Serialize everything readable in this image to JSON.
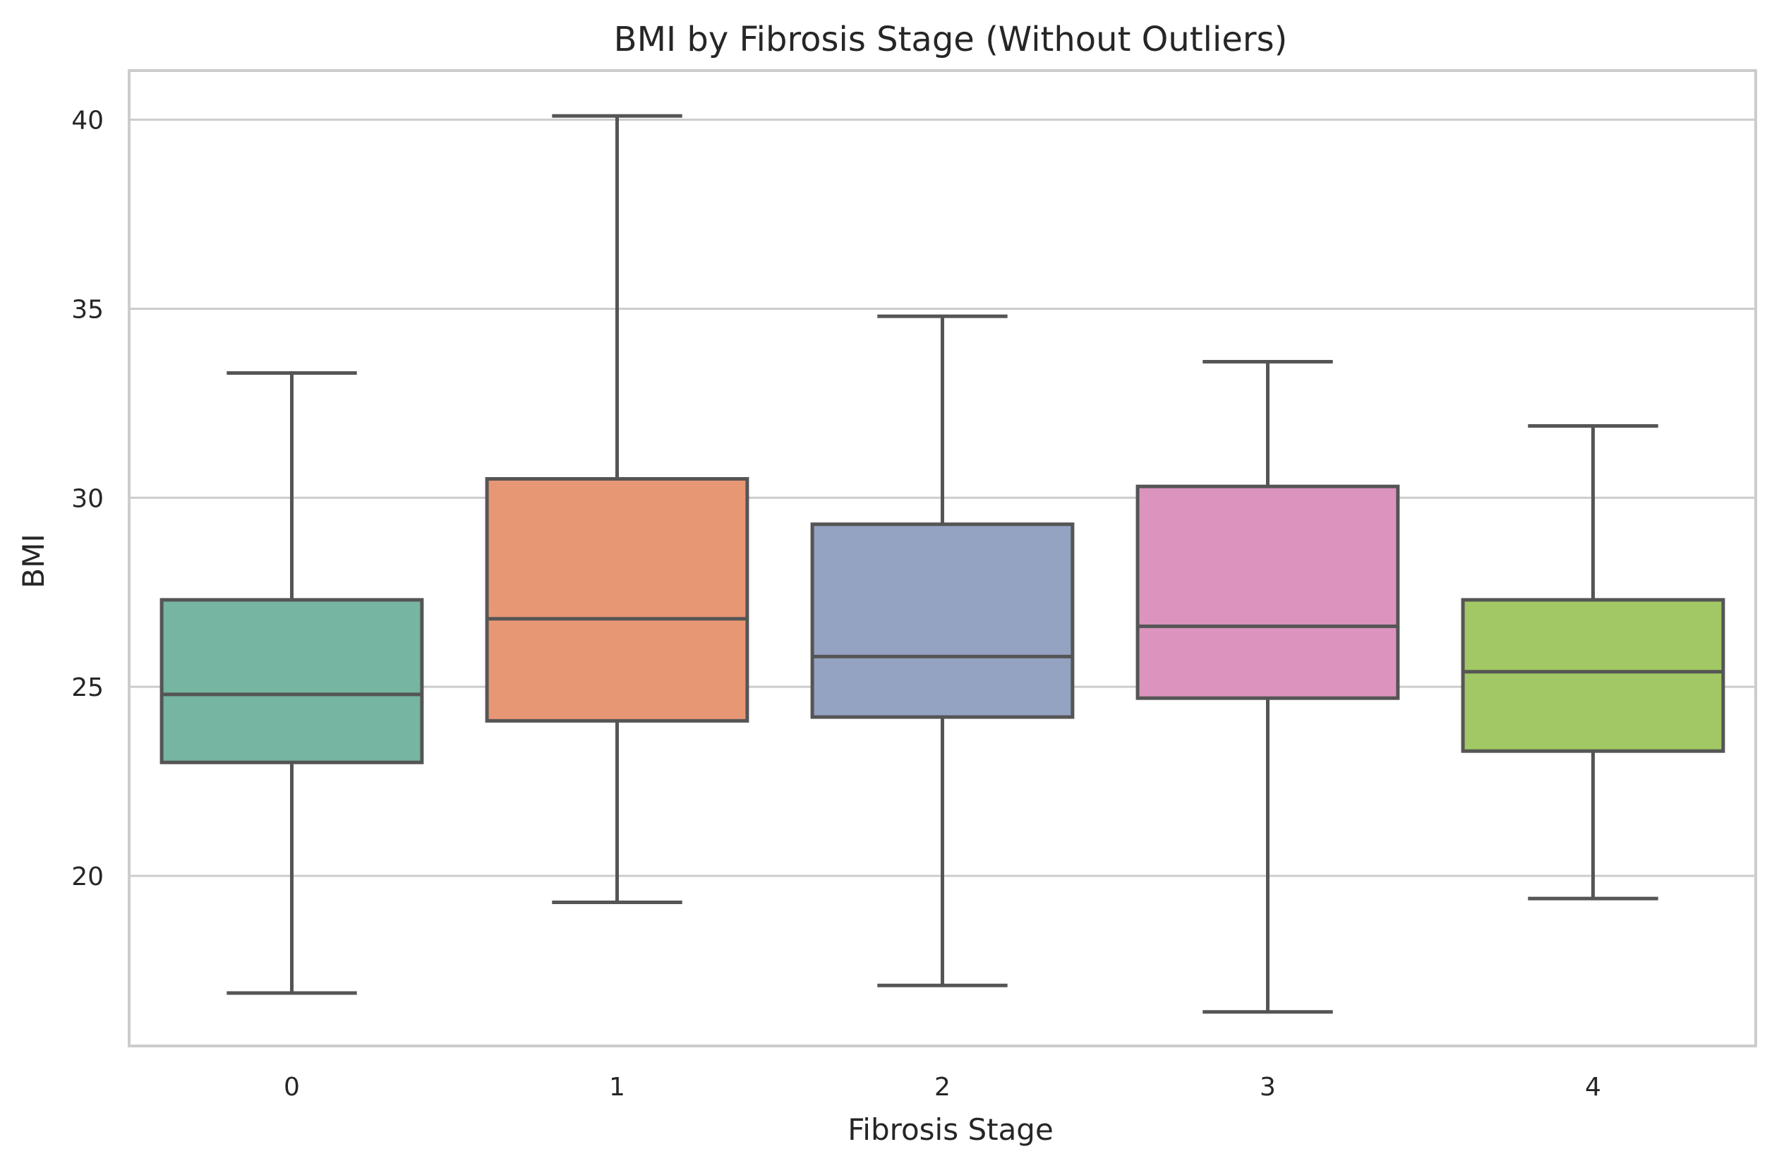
{
  "colors": {
    "background": "#ffffff",
    "grid": "#cccccc",
    "frame": "#cccccc",
    "box_edge": "#555555",
    "text": "#262626"
  },
  "chart_data": {
    "type": "box",
    "title": "BMI by Fibrosis Stage (Without Outliers)",
    "xlabel": "Fibrosis Stage",
    "ylabel": "BMI",
    "categories": [
      "0",
      "1",
      "2",
      "3",
      "4"
    ],
    "ylim": [
      15.5,
      41.3
    ],
    "yticks": [
      20,
      25,
      30,
      35,
      40
    ],
    "grid": true,
    "legend": "none",
    "boxes": [
      {
        "category": "0",
        "whisker_low": 16.9,
        "q1": 23.0,
        "median": 24.8,
        "q3": 27.3,
        "whisker_high": 33.3,
        "color": "#75b5a1"
      },
      {
        "category": "1",
        "whisker_low": 19.3,
        "q1": 24.1,
        "median": 26.8,
        "q3": 30.5,
        "whisker_high": 40.1,
        "color": "#e89775"
      },
      {
        "category": "2",
        "whisker_low": 17.1,
        "q1": 24.2,
        "median": 25.8,
        "q3": 29.3,
        "whisker_high": 34.8,
        "color": "#94a3c2"
      },
      {
        "category": "3",
        "whisker_low": 16.4,
        "q1": 24.7,
        "median": 26.6,
        "q3": 30.3,
        "whisker_high": 33.6,
        "color": "#dc94be"
      },
      {
        "category": "4",
        "whisker_low": 19.4,
        "q1": 23.3,
        "median": 25.4,
        "q3": 27.3,
        "whisker_high": 31.9,
        "color": "#a1c864"
      }
    ]
  }
}
